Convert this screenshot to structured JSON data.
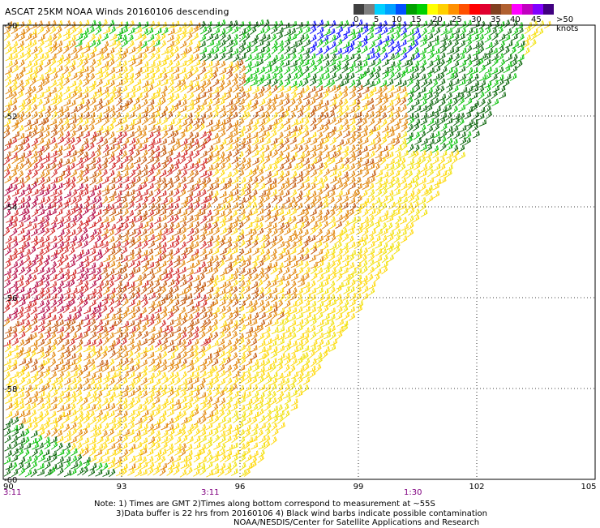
{
  "title": "ASCAT 25KM NOAA Winds 20160106 descending",
  "legend": {
    "labels": [
      "0",
      "5",
      "10",
      "15",
      "20",
      "25",
      "30",
      "35",
      "40",
      "45",
      ">50 knots"
    ],
    "colors": [
      "#404040",
      "#7f7f7f",
      "#00d0ff",
      "#00a0ff",
      "#0050ff",
      "#00a000",
      "#00d000",
      "#ffff00",
      "#ffd000",
      "#ff9000",
      "#ff5000",
      "#ff0000",
      "#e00030",
      "#804020",
      "#b06030",
      "#ff00ff",
      "#c000c0",
      "#8000ff",
      "#400080"
    ]
  },
  "map": {
    "lat_labels": [
      "-50",
      "-52",
      "-54",
      "-56",
      "-58",
      "-60"
    ],
    "lon_labels": [
      "90",
      "93",
      "96",
      "99",
      "102",
      "105"
    ],
    "times": [
      "3:11",
      "3:11",
      "1:30"
    ],
    "wind_colors": {
      "dark_green": "#006000",
      "green": "#00c000",
      "blue": "#0000ff",
      "yellow": "#ffd700",
      "light_yellow": "#f0e000",
      "orange": "#e08000",
      "dark_orange": "#c05000",
      "red": "#d02020",
      "crimson": "#b00040"
    }
  },
  "notes": {
    "line1": "Note: 1) Times are GMT 2)Times along bottom correspond to measurement at ~55S",
    "line2": "3)Data buffer is 22 hrs from 20160106 4) Black wind barbs indicate possible contamination",
    "line3": "NOAA/NESDIS/Center for Satellite Applications and Research"
  }
}
